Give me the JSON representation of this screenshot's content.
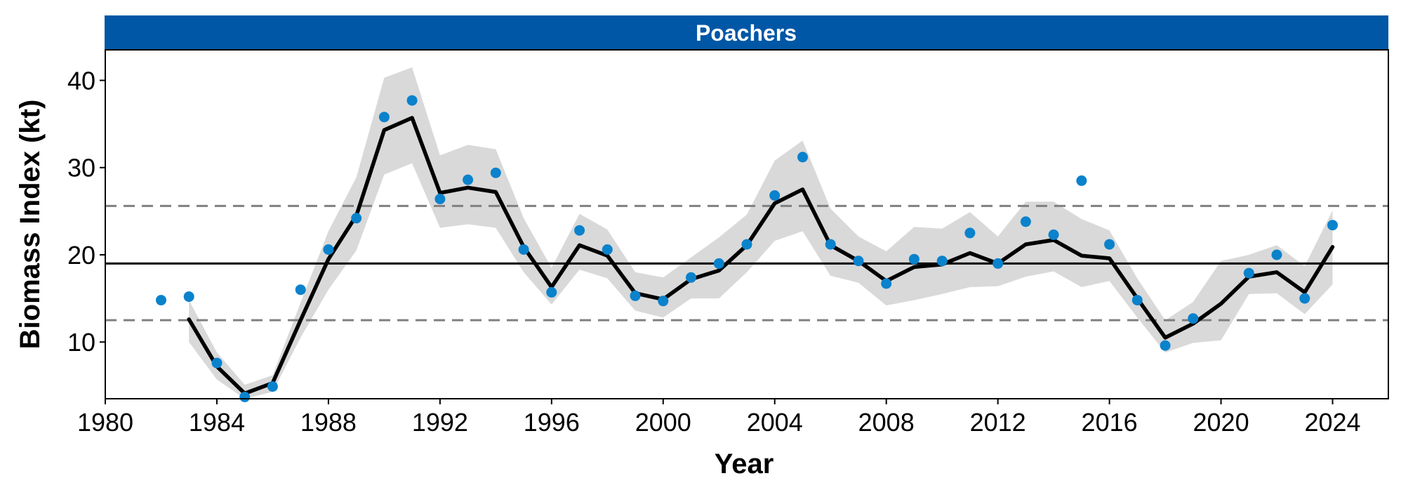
{
  "chart_data": {
    "type": "line",
    "title": "Poachers",
    "xlabel": "Year",
    "ylabel": "Biomass Index (kt)",
    "xlim": [
      1980,
      2026
    ],
    "ylim": [
      3.5,
      43.5
    ],
    "x_ticks": [
      1980,
      1984,
      1988,
      1992,
      1996,
      2000,
      2004,
      2008,
      2012,
      2016,
      2020,
      2024
    ],
    "y_ticks": [
      10,
      20,
      30,
      40
    ],
    "grid": false,
    "colors": {
      "strip": "#0057A6",
      "points": "#0A82CC",
      "line": "#000000",
      "band": "#D9D9D9",
      "reference_dashed": "#808080"
    },
    "reference_lines": {
      "mean": 19.0,
      "upper_dashed": 25.6,
      "lower_dashed": 12.5
    },
    "observed_points": {
      "x": [
        1982,
        1983,
        1984,
        1985,
        1986,
        1987,
        1988,
        1989,
        1990,
        1991,
        1992,
        1993,
        1994,
        1995,
        1996,
        1997,
        1998,
        1999,
        2000,
        2001,
        2002,
        2003,
        2004,
        2005,
        2006,
        2007,
        2008,
        2009,
        2010,
        2011,
        2012,
        2013,
        2014,
        2015,
        2016,
        2017,
        2018,
        2019,
        2020,
        2021,
        2022,
        2023,
        2024
      ],
      "y": [
        14.8,
        15.2,
        7.6,
        3.7,
        4.9,
        16.0,
        20.6,
        24.2,
        35.8,
        37.7,
        26.4,
        28.6,
        29.4,
        20.6,
        15.7,
        22.8,
        20.6,
        15.3,
        14.7,
        17.4,
        19.0,
        21.2,
        26.8,
        31.2,
        21.2,
        19.3,
        16.7,
        19.5,
        19.3,
        22.5,
        19.0,
        23.8,
        22.3,
        28.5,
        21.2,
        14.8,
        9.6,
        12.7,
        null,
        17.9,
        20.0,
        15.0,
        23.4
      ]
    },
    "smoothed_line": {
      "x": [
        1983,
        1984,
        1985,
        1986,
        1987,
        1988,
        1989,
        1990,
        1991,
        1992,
        1993,
        1994,
        1995,
        1996,
        1997,
        1998,
        1999,
        2000,
        2001,
        2002,
        2003,
        2004,
        2005,
        2006,
        2007,
        2008,
        2009,
        2010,
        2011,
        2012,
        2013,
        2014,
        2015,
        2016,
        2017,
        2018,
        2019,
        2020,
        2021,
        2022,
        2023,
        2024
      ],
      "y": [
        12.6,
        7.2,
        4.1,
        5.3,
        12.5,
        19.5,
        24.5,
        34.3,
        35.7,
        27.1,
        27.7,
        27.2,
        20.9,
        16.3,
        21.1,
        19.9,
        15.6,
        14.9,
        17.2,
        18.2,
        21.1,
        25.9,
        27.5,
        21.1,
        19.3,
        17.0,
        18.6,
        18.9,
        20.2,
        19.0,
        21.2,
        21.7,
        19.9,
        19.6,
        15.0,
        10.5,
        12.1,
        14.4,
        17.5,
        18.0,
        15.7,
        20.9
      ]
    },
    "confidence_band": {
      "x": [
        1983,
        1984,
        1985,
        1986,
        1987,
        1988,
        1989,
        1990,
        1991,
        1992,
        1993,
        1994,
        1995,
        1996,
        1997,
        1998,
        1999,
        2000,
        2001,
        2002,
        2003,
        2004,
        2005,
        2006,
        2007,
        2008,
        2009,
        2010,
        2011,
        2012,
        2013,
        2014,
        2015,
        2016,
        2017,
        2018,
        2019,
        2020,
        2021,
        2022,
        2023,
        2024
      ],
      "lower": [
        10.0,
        5.7,
        3.5,
        4.3,
        10.5,
        16.0,
        20.5,
        29.2,
        30.5,
        23.1,
        23.5,
        23.1,
        18.0,
        14.3,
        18.3,
        17.3,
        13.6,
        12.8,
        15.0,
        15.0,
        18.0,
        21.6,
        22.7,
        17.6,
        16.8,
        14.2,
        14.8,
        15.5,
        16.3,
        16.4,
        17.5,
        18.1,
        16.3,
        17.0,
        12.8,
        8.8,
        9.9,
        10.2,
        15.5,
        15.6,
        13.2,
        16.6
      ],
      "upper": [
        14.8,
        8.8,
        5.1,
        6.2,
        14.5,
        22.7,
        28.9,
        40.3,
        41.5,
        31.4,
        32.6,
        32.1,
        24.2,
        18.5,
        24.7,
        22.9,
        18.0,
        17.4,
        19.7,
        22.0,
        24.6,
        30.8,
        33.1,
        25.3,
        22.1,
        20.4,
        23.2,
        23.0,
        24.9,
        22.1,
        26.1,
        26.1,
        24.1,
        22.8,
        17.3,
        12.5,
        14.6,
        19.3,
        20.0,
        21.1,
        18.7,
        25.1
      ]
    }
  }
}
